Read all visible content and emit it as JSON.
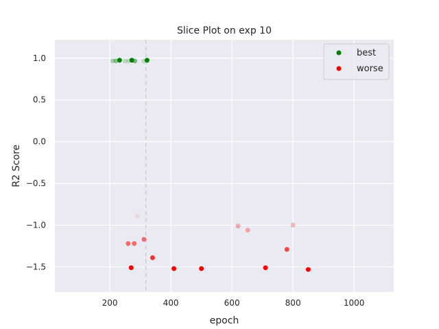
{
  "chart_data": {
    "type": "scatter",
    "title": "Slice Plot on exp 10",
    "xlabel": "epoch",
    "ylabel": "R2 Score",
    "xlim": [
      20,
      1130
    ],
    "ylim": [
      -1.8,
      1.22
    ],
    "x_ticks": [
      200,
      400,
      600,
      800,
      1000
    ],
    "x_tick_labels": [
      "200",
      "400",
      "600",
      "800",
      "1000"
    ],
    "y_ticks": [
      1.0,
      0.5,
      0.0,
      -0.5,
      -1.0,
      -1.5
    ],
    "y_tick_labels": [
      "1.0",
      "0.5",
      "0.0",
      "−0.5",
      "−1.0",
      "−1.5"
    ],
    "grid": true,
    "legend_position": "top-right",
    "reference_line": {
      "x": 318,
      "style": "dashed"
    },
    "series": [
      {
        "name": "best",
        "color": "#008000",
        "points": [
          {
            "x": 210,
            "y": 0.967,
            "alpha": 0.3
          },
          {
            "x": 220,
            "y": 0.967,
            "alpha": 0.4
          },
          {
            "x": 232,
            "y": 0.975,
            "alpha": 1.0
          },
          {
            "x": 250,
            "y": 0.965,
            "alpha": 0.2
          },
          {
            "x": 262,
            "y": 0.965,
            "alpha": 0.2
          },
          {
            "x": 272,
            "y": 0.975,
            "alpha": 1.0
          },
          {
            "x": 282,
            "y": 0.966,
            "alpha": 0.5
          },
          {
            "x": 312,
            "y": 0.965,
            "alpha": 0.2
          },
          {
            "x": 322,
            "y": 0.975,
            "alpha": 1.0
          }
        ]
      },
      {
        "name": "worse",
        "color": "#ff0000",
        "points": [
          {
            "x": 290,
            "y": -0.89,
            "alpha": 0.08
          },
          {
            "x": 620,
            "y": -1.01,
            "alpha": 0.3
          },
          {
            "x": 652,
            "y": -1.06,
            "alpha": 0.3
          },
          {
            "x": 800,
            "y": -1.0,
            "alpha": 0.25
          },
          {
            "x": 260,
            "y": -1.22,
            "alpha": 0.55
          },
          {
            "x": 280,
            "y": -1.22,
            "alpha": 0.55
          },
          {
            "x": 312,
            "y": -1.17,
            "alpha": 0.55
          },
          {
            "x": 780,
            "y": -1.29,
            "alpha": 0.7
          },
          {
            "x": 340,
            "y": -1.39,
            "alpha": 0.8
          },
          {
            "x": 270,
            "y": -1.51,
            "alpha": 1.0
          },
          {
            "x": 410,
            "y": -1.52,
            "alpha": 1.0
          },
          {
            "x": 500,
            "y": -1.52,
            "alpha": 1.0
          },
          {
            "x": 710,
            "y": -1.51,
            "alpha": 1.0
          },
          {
            "x": 850,
            "y": -1.53,
            "alpha": 1.0
          }
        ]
      }
    ]
  }
}
